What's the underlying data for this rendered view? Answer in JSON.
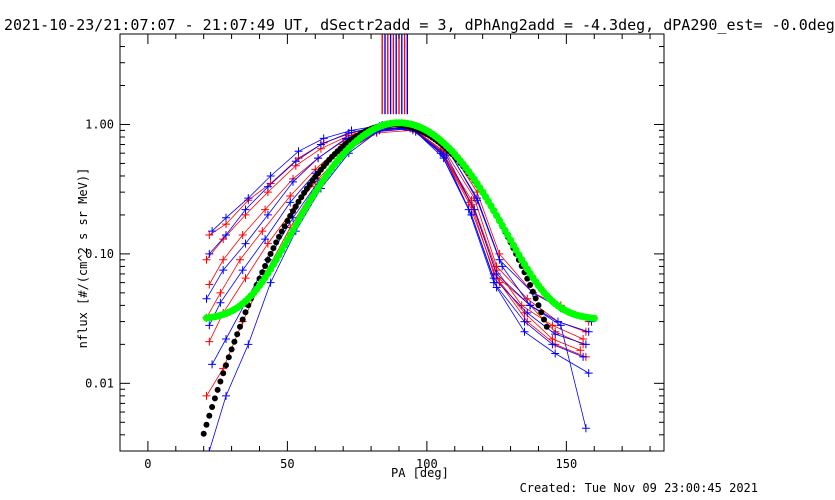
{
  "title": "2021-10-23/21:07:07 - 21:07:49 UT, dSectr2add = 3, dPhAng2add = -4.3deg, dPA290_est= -0.0deg",
  "footer": "Created: Tue Nov 09 23:00:45 2021",
  "colors": {
    "red": "#ff0000",
    "blue": "#0000ff",
    "black": "#000000",
    "green": "#00ff00"
  },
  "chart_data": {
    "type": "line",
    "xlabel": "PA [deg]",
    "ylabel": "nflux [#/(cm^2 s sr MeV)]",
    "xlim": [
      -10,
      185
    ],
    "ylim": [
      0.003,
      5.0
    ],
    "yscale": "log",
    "grid": false,
    "xticks": [
      0,
      50,
      100,
      150
    ],
    "xtick_labels": [
      "0",
      "50",
      "100",
      "150"
    ],
    "yticks": [
      0.01,
      0.1,
      1.0
    ],
    "ytick_labels": [
      "0.01",
      "0.10",
      "1.00"
    ],
    "vertical_markers": {
      "x": [
        84,
        85,
        86,
        87,
        88,
        89,
        90,
        91,
        92,
        93
      ],
      "colors": [
        "red",
        "blue",
        "red",
        "blue",
        "red",
        "blue",
        "red",
        "blue",
        "red",
        "blue"
      ],
      "y_range": [
        1.2,
        5.0
      ]
    },
    "series": [
      {
        "color": "red",
        "x": [
          22,
          28,
          36,
          44,
          54,
          63,
          73,
          84,
          97,
          108,
          118,
          126,
          138,
          148,
          158
        ],
        "y": [
          0.14,
          0.17,
          0.26,
          0.35,
          0.55,
          0.72,
          0.86,
          0.97,
          0.92,
          0.65,
          0.3,
          0.1,
          0.05,
          0.04,
          0.03
        ]
      },
      {
        "color": "red",
        "x": [
          21,
          27,
          35,
          43,
          53,
          62,
          72,
          83,
          96,
          107,
          117,
          125,
          136,
          147,
          157
        ],
        "y": [
          0.09,
          0.13,
          0.2,
          0.3,
          0.48,
          0.65,
          0.82,
          0.95,
          0.9,
          0.6,
          0.27,
          0.08,
          0.045,
          0.03,
          0.025
        ]
      },
      {
        "color": "red",
        "x": [
          22,
          27,
          34,
          42,
          52,
          61,
          71,
          82,
          95,
          106,
          116,
          124,
          137,
          146,
          156
        ],
        "y": [
          0.058,
          0.09,
          0.14,
          0.22,
          0.38,
          0.55,
          0.77,
          0.93,
          0.91,
          0.58,
          0.24,
          0.07,
          0.04,
          0.025,
          0.02
        ]
      },
      {
        "color": "red",
        "x": [
          21,
          26,
          33,
          41,
          51,
          60,
          70,
          81,
          94,
          105,
          115,
          125,
          135,
          145,
          155
        ],
        "y": [
          0.032,
          0.05,
          0.09,
          0.15,
          0.28,
          0.45,
          0.7,
          0.9,
          0.93,
          0.62,
          0.25,
          0.065,
          0.035,
          0.022,
          0.018
        ]
      },
      {
        "color": "red",
        "x": [
          22,
          27,
          35,
          43,
          52,
          61,
          71,
          82,
          95,
          106,
          117,
          126,
          136,
          146,
          157
        ],
        "y": [
          0.021,
          0.035,
          0.065,
          0.12,
          0.22,
          0.38,
          0.62,
          0.86,
          0.9,
          0.6,
          0.22,
          0.06,
          0.03,
          0.02,
          0.016
        ]
      },
      {
        "color": "red",
        "x": [
          21,
          27,
          34,
          42,
          51,
          60,
          70,
          81,
          94,
          105,
          116,
          125,
          134,
          145,
          156
        ],
        "y": [
          0.008,
          0.013,
          0.03,
          0.07,
          0.16,
          0.33,
          0.6,
          0.88,
          0.95,
          0.64,
          0.26,
          0.075,
          0.04,
          0.028,
          0.022
        ]
      },
      {
        "color": "blue",
        "x": [
          23,
          28,
          36,
          44,
          54,
          63,
          73,
          84,
          97,
          108,
          118,
          126,
          138,
          148,
          159
        ],
        "y": [
          0.15,
          0.19,
          0.27,
          0.4,
          0.62,
          0.78,
          0.9,
          0.99,
          0.9,
          0.62,
          0.26,
          0.09,
          0.05,
          0.038,
          0.03
        ]
      },
      {
        "color": "blue",
        "x": [
          22,
          28,
          35,
          43,
          53,
          62,
          72,
          83,
          96,
          107,
          117,
          125,
          137,
          147,
          158
        ],
        "y": [
          0.1,
          0.14,
          0.22,
          0.33,
          0.52,
          0.7,
          0.86,
          0.97,
          0.88,
          0.58,
          0.22,
          0.07,
          0.04,
          0.03,
          0.025
        ]
      },
      {
        "color": "blue",
        "x": [
          21,
          27,
          35,
          43,
          52,
          61,
          71,
          82,
          95,
          106,
          116,
          124,
          136,
          146,
          157
        ],
        "y": [
          0.045,
          0.075,
          0.12,
          0.2,
          0.36,
          0.55,
          0.78,
          0.94,
          0.92,
          0.55,
          0.2,
          0.065,
          0.035,
          0.024,
          0.02
        ]
      },
      {
        "color": "blue",
        "x": [
          22,
          26,
          34,
          42,
          51,
          60,
          70,
          81,
          94,
          105,
          115,
          124,
          135,
          145,
          156
        ],
        "y": [
          0.028,
          0.042,
          0.075,
          0.13,
          0.25,
          0.42,
          0.68,
          0.9,
          0.95,
          0.6,
          0.22,
          0.06,
          0.03,
          0.02,
          0.016
        ]
      },
      {
        "color": "blue",
        "x": [
          23,
          28,
          35,
          43,
          52,
          61,
          71,
          82,
          95,
          106,
          116,
          125,
          135,
          146,
          158
        ],
        "y": [
          0.014,
          0.022,
          0.042,
          0.09,
          0.19,
          0.36,
          0.62,
          0.88,
          0.93,
          0.58,
          0.2,
          0.055,
          0.025,
          0.017,
          0.012
        ]
      },
      {
        "color": "blue",
        "x": [
          22,
          28,
          36,
          44,
          53,
          62,
          72,
          83,
          96,
          107,
          118,
          127,
          137,
          148,
          157
        ],
        "y": [
          0.003,
          0.008,
          0.02,
          0.06,
          0.15,
          0.32,
          0.6,
          0.9,
          0.97,
          0.66,
          0.27,
          0.08,
          0.04,
          0.028,
          0.0045
        ]
      },
      {
        "color": "black",
        "style": "dots",
        "fn": "gauss",
        "amp": 1.0,
        "center": 88,
        "sigma": 20.5,
        "x_range": [
          20,
          143
        ]
      },
      {
        "color": "green",
        "style": "dots",
        "fn": "gauss_plus_const",
        "amp": 1.0,
        "center": 90,
        "sigma": 18.5,
        "const": 0.031,
        "x_range": [
          21,
          160
        ]
      }
    ]
  }
}
